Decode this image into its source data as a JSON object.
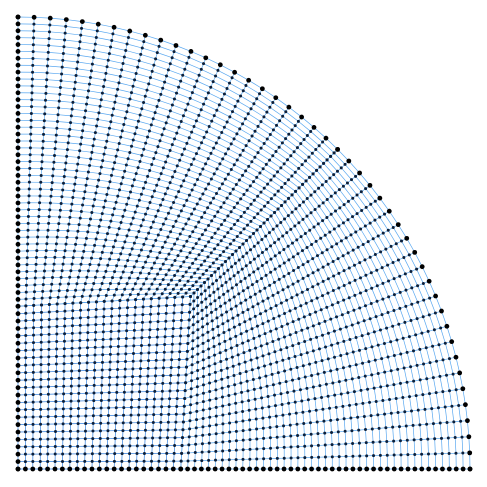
{
  "diagram": {
    "kind": "structured-quadrilateral-mesh-quarter-disk",
    "shape": "quarter-circle",
    "core_shape": "square-like inner block",
    "mesh_resolution": 64,
    "colors": {
      "background": "#ffffff",
      "boundary_node": "#000000",
      "interior_node": "#0b1f3a",
      "edge_core": "#2f7fe0",
      "edge_light": "#5aa8f0"
    }
  }
}
